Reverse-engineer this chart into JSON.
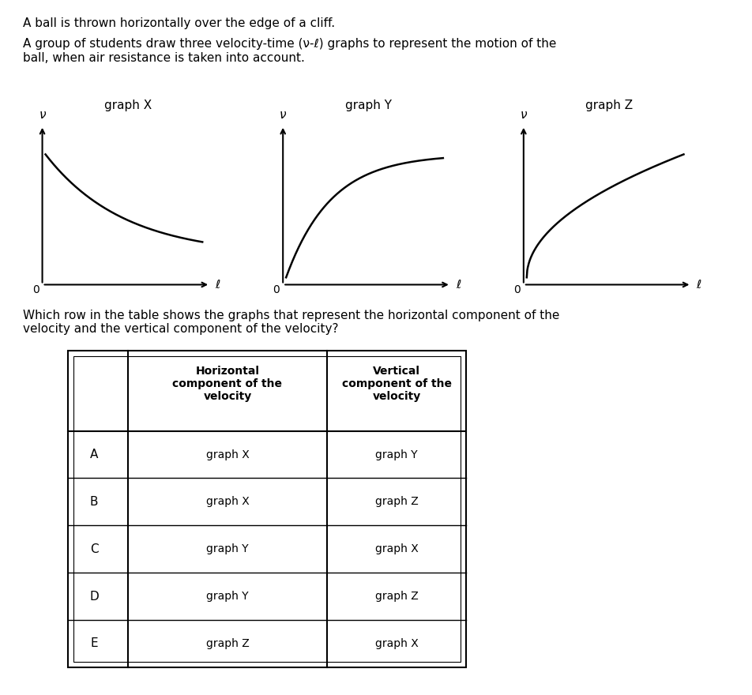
{
  "title_text1": "A ball is thrown horizontally over the edge of a cliff.",
  "title_text2": "A group of students draw three velocity-time (ν-ℓ) graphs to represent the motion of the\nball, when air resistance is taken into account.",
  "question_text": "Which row in the table shows the graphs that represent the horizontal component of the\nvelocity and the vertical component of the velocity?",
  "graph_labels": [
    "graph X",
    "graph Y",
    "graph Z"
  ],
  "table_header": [
    "",
    "Horizontal\ncomponent of the\nvelocity",
    "Vertical\ncomponent of the\nvelocity"
  ],
  "table_rows": [
    [
      "A",
      "graph X",
      "graph Y"
    ],
    [
      "B",
      "graph X",
      "graph Z"
    ],
    [
      "C",
      "graph Y",
      "graph X"
    ],
    [
      "D",
      "graph Y",
      "graph Z"
    ],
    [
      "E",
      "graph Z",
      "graph X"
    ]
  ],
  "background_color": "#ffffff",
  "text_color": "#000000",
  "curve_color": "#000000",
  "axis_color": "#000000"
}
